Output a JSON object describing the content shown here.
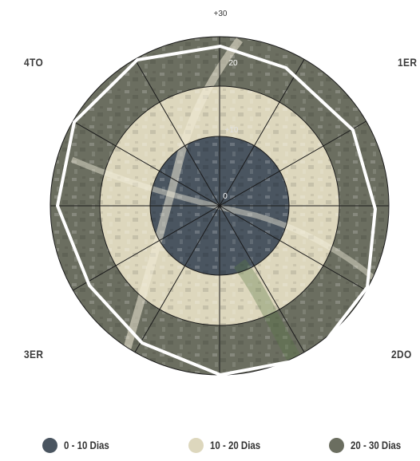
{
  "quadrants": {
    "q1": "1ER",
    "q2": "2DO",
    "q3": "3ER",
    "q4": "4TO"
  },
  "scale_labels": {
    "outer": "+30",
    "middle": "20",
    "inner": "+10",
    "center": "0"
  },
  "legend": [
    {
      "label": "0 - 10 Dias",
      "color": "#4a5560"
    },
    {
      "label": "10 - 20 Dias",
      "color": "#ddd7bd"
    },
    {
      "label": "20 - 30 Dias",
      "color": "#6b6e60"
    }
  ],
  "colors": {
    "inner_ring": "#4a5560",
    "middle_ring": "#ddd7bd",
    "outer_ring": "#6b6e60",
    "grid": "#1a1a1a",
    "polygon": "#ffffff"
  }
}
